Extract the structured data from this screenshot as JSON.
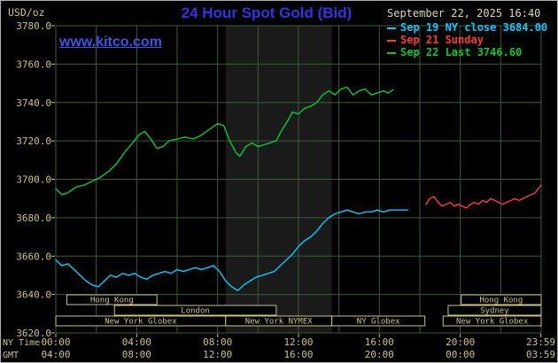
{
  "header": {
    "units": "USD/oz",
    "title": "24 Hour Spot Gold (Bid)",
    "datetime": "September 22, 2025 16:40",
    "watermark": "www.kitco.com",
    "legend": [
      {
        "label": "Sep 19 NY close 3684.00",
        "color": "#00ccff"
      },
      {
        "label": "Sep 21 Sunday",
        "color": "#ff3b30"
      },
      {
        "label": "Sep 22 Last 3746.60",
        "color": "#00cc33"
      }
    ]
  },
  "colors": {
    "background": "#000000",
    "grid": "#3c5a3c",
    "band": "#1a1a1a",
    "axis_text": "#cdc37d",
    "session_box": "#cdc37d",
    "title_blue": "#3232e6",
    "watermark_blue": "#3c55e6",
    "datetime_text": "#ddd8b5"
  },
  "axes": {
    "y_ticks": [
      3780,
      3760,
      3740,
      3720,
      3700,
      3680,
      3660,
      3640,
      3620
    ],
    "x_tick_hours": [
      0,
      4,
      8,
      12,
      16,
      20,
      23.983
    ],
    "x_ny_label": "NY Time",
    "x_gmt_label": "GMT",
    "x_ny_ticks": [
      "00:00",
      "04:00",
      "08:00",
      "12:00",
      "16:00",
      "20:00",
      "23:59"
    ],
    "x_gmt_ticks": [
      "04:00",
      "08:00",
      "12:00",
      "16:00",
      "20:00",
      "00:00",
      "03:59"
    ]
  },
  "sessions": {
    "rows": [
      {
        "segments": [
          {
            "label": "Hong Kong",
            "start": 0.55,
            "end": 5.0
          },
          {
            "label": "Hong Kong",
            "start": 20.05,
            "end": 24
          }
        ]
      },
      {
        "segments": [
          {
            "label": "London",
            "start": 2.9,
            "end": 10.9
          },
          {
            "label": "Sydney",
            "start": 19.4,
            "end": 24
          }
        ]
      },
      {
        "segments": [
          {
            "label": "New York Globex",
            "start": 0,
            "end": 8.4
          },
          {
            "label": "New York NYMEX",
            "start": 8.4,
            "end": 13.65
          },
          {
            "label": "NY Globex",
            "start": 13.65,
            "end": 18.25
          },
          {
            "label": "New York Globex",
            "start": 19.15,
            "end": 24
          }
        ]
      }
    ]
  },
  "chart_data": {
    "type": "line",
    "title": "24 Hour Spot Gold (Bid)",
    "xlabel": "NY Time (hours)",
    "ylabel": "USD/oz",
    "ylim": [
      3620,
      3780
    ],
    "xlim_hours": [
      0,
      24
    ],
    "y_grid_step": 20,
    "x_grid_step_hours": 2,
    "nymex_band": [
      8.4,
      13.65
    ],
    "series": [
      {
        "name": "Sep 19 NY close",
        "color": "#00ccff",
        "close_value": 3684.0,
        "points": [
          [
            0,
            3658
          ],
          [
            0.3,
            3655
          ],
          [
            0.6,
            3656
          ],
          [
            0.9,
            3653
          ],
          [
            1.2,
            3650
          ],
          [
            1.5,
            3647
          ],
          [
            1.8,
            3645
          ],
          [
            2.1,
            3644
          ],
          [
            2.4,
            3647
          ],
          [
            2.7,
            3650
          ],
          [
            3,
            3649
          ],
          [
            3.3,
            3651
          ],
          [
            3.6,
            3650
          ],
          [
            3.9,
            3651
          ],
          [
            4.2,
            3649
          ],
          [
            4.5,
            3648
          ],
          [
            4.8,
            3650
          ],
          [
            5.1,
            3651
          ],
          [
            5.4,
            3652
          ],
          [
            5.7,
            3651
          ],
          [
            6,
            3653
          ],
          [
            6.3,
            3652
          ],
          [
            6.6,
            3653
          ],
          [
            6.9,
            3654
          ],
          [
            7.2,
            3653
          ],
          [
            7.5,
            3654
          ],
          [
            7.8,
            3655
          ],
          [
            8.1,
            3652
          ],
          [
            8.4,
            3647
          ],
          [
            8.7,
            3644
          ],
          [
            9,
            3642
          ],
          [
            9.3,
            3645
          ],
          [
            9.6,
            3647
          ],
          [
            9.9,
            3649
          ],
          [
            10.2,
            3650
          ],
          [
            10.5,
            3651
          ],
          [
            10.8,
            3652
          ],
          [
            11.1,
            3655
          ],
          [
            11.4,
            3658
          ],
          [
            11.7,
            3661
          ],
          [
            12,
            3665
          ],
          [
            12.3,
            3668
          ],
          [
            12.6,
            3670
          ],
          [
            12.9,
            3673
          ],
          [
            13.2,
            3677
          ],
          [
            13.5,
            3680
          ],
          [
            13.8,
            3682
          ],
          [
            14.1,
            3683
          ],
          [
            14.4,
            3684
          ],
          [
            14.7,
            3683
          ],
          [
            15,
            3682
          ],
          [
            15.3,
            3683
          ],
          [
            15.6,
            3683
          ],
          [
            15.9,
            3684
          ],
          [
            16.2,
            3683
          ],
          [
            16.5,
            3684
          ],
          [
            16.8,
            3684
          ],
          [
            17.1,
            3684
          ],
          [
            17.4,
            3684
          ]
        ]
      },
      {
        "name": "Sep 21 Sunday",
        "color": "#ff3b30",
        "points": [
          [
            18.3,
            3687
          ],
          [
            18.5,
            3690
          ],
          [
            18.7,
            3691
          ],
          [
            18.9,
            3688
          ],
          [
            19.1,
            3686
          ],
          [
            19.3,
            3687
          ],
          [
            19.5,
            3688
          ],
          [
            19.7,
            3686
          ],
          [
            19.9,
            3687
          ],
          [
            20.1,
            3686
          ],
          [
            20.3,
            3685
          ],
          [
            20.5,
            3687
          ],
          [
            20.7,
            3688
          ],
          [
            20.9,
            3687
          ],
          [
            21.1,
            3689
          ],
          [
            21.3,
            3688
          ],
          [
            21.5,
            3690
          ],
          [
            21.7,
            3689
          ],
          [
            21.9,
            3688
          ],
          [
            22.1,
            3687
          ],
          [
            22.3,
            3688
          ],
          [
            22.5,
            3689
          ],
          [
            22.7,
            3690
          ],
          [
            22.9,
            3689
          ],
          [
            23.1,
            3690
          ],
          [
            23.3,
            3691
          ],
          [
            23.5,
            3692
          ],
          [
            23.7,
            3693
          ],
          [
            23.85,
            3695
          ],
          [
            24,
            3697
          ]
        ]
      },
      {
        "name": "Sep 22 Last",
        "color": "#00cc33",
        "last_value": 3746.6,
        "points": [
          [
            0,
            3695
          ],
          [
            0.3,
            3692
          ],
          [
            0.6,
            3693
          ],
          [
            1,
            3696
          ],
          [
            1.4,
            3697
          ],
          [
            1.8,
            3699
          ],
          [
            2.2,
            3701
          ],
          [
            2.6,
            3704
          ],
          [
            3,
            3708
          ],
          [
            3.4,
            3714
          ],
          [
            3.8,
            3719
          ],
          [
            4.1,
            3723
          ],
          [
            4.4,
            3725
          ],
          [
            4.7,
            3721
          ],
          [
            5,
            3716
          ],
          [
            5.3,
            3717
          ],
          [
            5.6,
            3720
          ],
          [
            6,
            3721
          ],
          [
            6.4,
            3722
          ],
          [
            6.8,
            3721
          ],
          [
            7.2,
            3723
          ],
          [
            7.6,
            3726
          ],
          [
            8,
            3729
          ],
          [
            8.3,
            3728
          ],
          [
            8.6,
            3720
          ],
          [
            8.9,
            3714
          ],
          [
            9.1,
            3712
          ],
          [
            9.4,
            3717
          ],
          [
            9.7,
            3719
          ],
          [
            10,
            3717
          ],
          [
            10.3,
            3718
          ],
          [
            10.6,
            3719
          ],
          [
            10.9,
            3720
          ],
          [
            11.2,
            3726
          ],
          [
            11.5,
            3731
          ],
          [
            11.7,
            3735
          ],
          [
            12,
            3734
          ],
          [
            12.3,
            3737
          ],
          [
            12.6,
            3738
          ],
          [
            12.9,
            3740
          ],
          [
            13.2,
            3744
          ],
          [
            13.5,
            3746
          ],
          [
            13.8,
            3744
          ],
          [
            14.1,
            3747
          ],
          [
            14.4,
            3748
          ],
          [
            14.7,
            3744
          ],
          [
            15,
            3746
          ],
          [
            15.3,
            3747
          ],
          [
            15.6,
            3744
          ],
          [
            15.9,
            3745
          ],
          [
            16.2,
            3746
          ],
          [
            16.45,
            3745
          ],
          [
            16.67,
            3746.6
          ]
        ]
      }
    ]
  }
}
